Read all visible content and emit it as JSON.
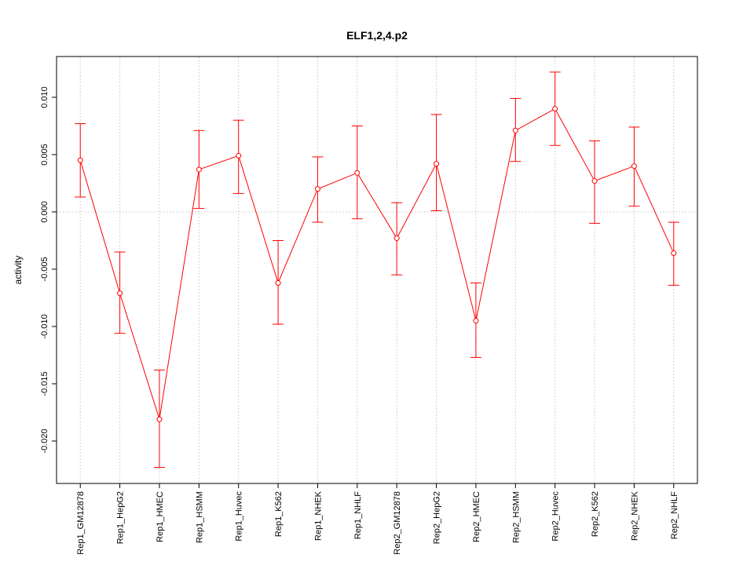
{
  "chart_data": {
    "type": "line",
    "title": "ELF1,2,4.p2",
    "xlabel": "",
    "ylabel": "activity",
    "ylim": [
      -0.0237,
      0.01356
    ],
    "xlim": [
      0.4,
      16.6
    ],
    "grid": true,
    "yticks": [
      0.01,
      0.005,
      0.0,
      -0.005,
      -0.01,
      -0.015,
      -0.02
    ],
    "ytick_labels": [
      "0.010",
      "0.005",
      "0.000",
      "-0.005",
      "-0.010",
      "-0.015",
      "-0.020"
    ],
    "categories": [
      "Rep1_GM12878",
      "Rep1_HepG2",
      "Rep1_HMEC",
      "Rep1_HSMM",
      "Rep1_Huvec",
      "Rep1_K562",
      "Rep1_NHEK",
      "Rep1_NHLF",
      "Rep2_GM12878",
      "Rep2_HepG2",
      "Rep2_HMEC",
      "Rep2_HSMM",
      "Rep2_Huvec",
      "Rep2_K562",
      "Rep2_NHEK",
      "Rep2_NHLF"
    ],
    "series": [
      {
        "name": "activity",
        "color": "#ff0000",
        "values": [
          0.0045,
          -0.0071,
          -0.0181,
          0.0037,
          0.0049,
          -0.0062,
          0.002,
          0.0034,
          -0.0023,
          0.0042,
          -0.0095,
          0.0071,
          0.009,
          0.0027,
          0.004,
          -0.0036
        ],
        "upper": [
          0.0077,
          -0.0035,
          -0.0138,
          0.0071,
          0.008,
          -0.0025,
          0.0048,
          0.0075,
          0.0008,
          0.0085,
          -0.0062,
          0.0099,
          0.0122,
          0.0062,
          0.0074,
          -0.0009
        ],
        "lower": [
          0.0013,
          -0.0106,
          -0.0223,
          0.0003,
          0.0016,
          -0.0098,
          -0.0009,
          -0.0006,
          -0.0055,
          0.0001,
          -0.0127,
          0.0044,
          0.0058,
          -0.001,
          0.0005,
          -0.0064
        ]
      }
    ]
  }
}
